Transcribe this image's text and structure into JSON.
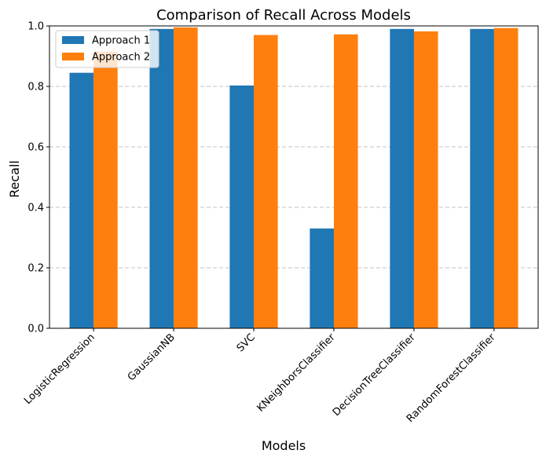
{
  "chart_data": {
    "type": "bar",
    "title": "Comparison of Recall Across Models",
    "xlabel": "Models",
    "ylabel": "Recall",
    "ylim": [
      0,
      1.0
    ],
    "yticks": [
      "0.0",
      "0.2",
      "0.4",
      "0.6",
      "0.8",
      "1.0"
    ],
    "grid": "y-dashed",
    "legend_position": "top-left",
    "categories": [
      "LogisticRegression",
      "GaussianNB",
      "SVC",
      "KNeighborsClassifier",
      "DecisionTreeClassifier",
      "RandomForestClassifier"
    ],
    "series": [
      {
        "name": "Approach 1",
        "color": "#1f77b4",
        "values": [
          0.845,
          0.99,
          0.803,
          0.33,
          0.99,
          0.99
        ]
      },
      {
        "name": "Approach 2",
        "color": "#ff7f0e",
        "values": [
          0.915,
          0.995,
          0.97,
          0.972,
          0.982,
          0.993
        ]
      }
    ]
  }
}
